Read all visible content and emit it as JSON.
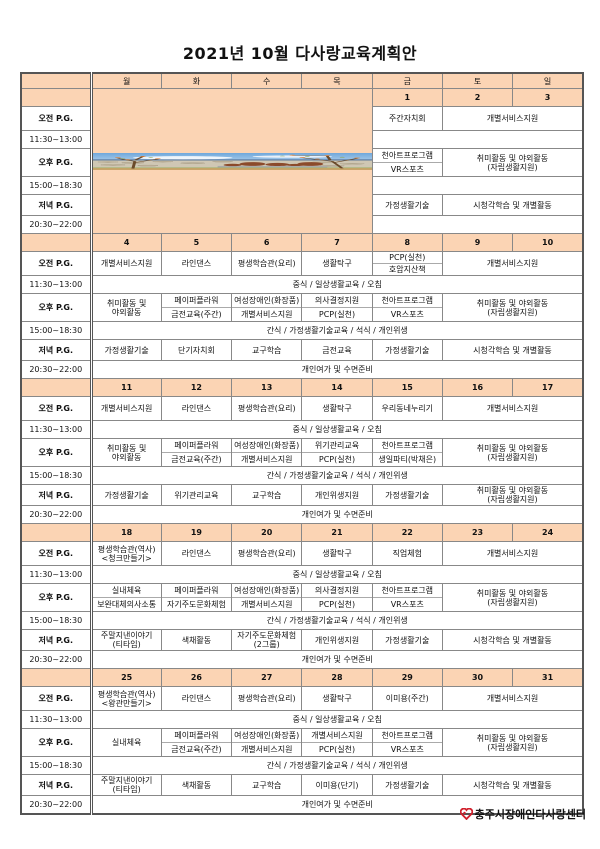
{
  "title": "2021년  10월  다사랑교육계획안",
  "weekdays": [
    "월",
    "화",
    "수",
    "목",
    "금",
    "토",
    "일"
  ],
  "row_labels": [
    "오전 P.G.",
    "11:30~13:00",
    "오후 P.G.",
    "15:00~18:30",
    "저녁 P.G.",
    "20:30~22:00"
  ],
  "colors": {
    "header_bg": "#fbd4b4",
    "border": "#555555",
    "logo": "#d01f2b"
  },
  "weeks": [
    {
      "dates": [
        "",
        "",
        "",
        "",
        "1",
        "2",
        "3"
      ],
      "image_cols": 4,
      "am": [
        {
          "t": [
            "주간자치회"
          ]
        },
        {
          "t": [
            "개별서비스지원"
          ],
          "span": 2
        }
      ],
      "meal1": "",
      "pm": [
        {
          "split": [
            "천아트프로그램",
            "VR스포츠"
          ]
        },
        {
          "t": [
            "취미활동 및 야외활동",
            "(자립생활지원)"
          ],
          "span": 2
        }
      ],
      "meal2": "",
      "eve": [
        {
          "t": [
            "가정생활기술"
          ]
        },
        {
          "t": [
            "시청각학습 및 개별활동"
          ],
          "span": 2
        }
      ],
      "meal3": ""
    },
    {
      "dates": [
        "4",
        "5",
        "6",
        "7",
        "8",
        "9",
        "10"
      ],
      "am": [
        {
          "t": [
            "개별서비스지원"
          ]
        },
        {
          "t": [
            "라인댄스"
          ]
        },
        {
          "t": [
            "평생학습관(요리)"
          ]
        },
        {
          "t": [
            "생활탁구"
          ]
        },
        {
          "split": [
            "PCP(실천)",
            "호암지산책"
          ]
        },
        {
          "t": [
            "개별서비스지원"
          ],
          "span": 2
        }
      ],
      "meal1": "중식  /  일상생활교육  /  오침",
      "pm": [
        {
          "t": [
            "취미활동 및",
            "야외활동"
          ]
        },
        {
          "split": [
            "페이퍼플라워",
            "금전교육(주간)"
          ]
        },
        {
          "split": [
            "여성장애인(화장품)",
            "개별서비스지원"
          ]
        },
        {
          "split": [
            "의사결정지원",
            "PCP(실천)"
          ]
        },
        {
          "split": [
            "천아트프로그램",
            "VR스포츠"
          ]
        },
        {
          "t": [
            "취미활동 및 야외활동",
            "(자립생활지원)"
          ],
          "span": 2
        }
      ],
      "meal2": "간식  /  가정생활기술교육  /  석식  /  개인위생",
      "eve": [
        {
          "t": [
            "가정생활기술"
          ]
        },
        {
          "t": [
            "단기자치회"
          ]
        },
        {
          "t": [
            "교구학습"
          ]
        },
        {
          "t": [
            "금전교육"
          ]
        },
        {
          "t": [
            "가정생활기술"
          ]
        },
        {
          "t": [
            "시청각학습 및 개별활동"
          ],
          "span": 2
        }
      ],
      "meal3": "개인여가 및 수면준비"
    },
    {
      "dates": [
        "11",
        "12",
        "13",
        "14",
        "15",
        "16",
        "17"
      ],
      "am": [
        {
          "t": [
            "개별서비스지원"
          ]
        },
        {
          "t": [
            "라인댄스"
          ]
        },
        {
          "t": [
            "평생학습관(요리)"
          ]
        },
        {
          "t": [
            "생활탁구"
          ]
        },
        {
          "t": [
            "우리동네누리기"
          ]
        },
        {
          "t": [
            "개별서비스지원"
          ],
          "span": 2
        }
      ],
      "meal1": "중식  /  일상생활교육  /  오침",
      "pm": [
        {
          "t": [
            "취미활동 및",
            "야외활동"
          ]
        },
        {
          "split": [
            "페이퍼플라워",
            "금전교육(주간)"
          ]
        },
        {
          "split": [
            "여성장애인(화장품)",
            "개별서비스지원"
          ]
        },
        {
          "split": [
            "위기관리교육",
            "PCP(실천)"
          ]
        },
        {
          "split": [
            "천아트프로그램",
            "생일파티(박채은)"
          ]
        },
        {
          "t": [
            "취미활동 및 야외활동",
            "(자립생활지원)"
          ],
          "span": 2
        }
      ],
      "meal2": "간식  /  가정생활기술교육  /  석식  /  개인위생",
      "eve": [
        {
          "t": [
            "가정생활기술"
          ]
        },
        {
          "t": [
            "위기관리교육"
          ]
        },
        {
          "t": [
            "교구학습"
          ]
        },
        {
          "t": [
            "개인위생지원"
          ]
        },
        {
          "t": [
            "가정생활기술"
          ]
        },
        {
          "t": [
            "취미활동 및 야외활동",
            "(자립생활지원)"
          ],
          "span": 2
        }
      ],
      "meal3": "개인여가 및 수면준비"
    },
    {
      "dates": [
        "18",
        "19",
        "20",
        "21",
        "22",
        "23",
        "24"
      ],
      "am": [
        {
          "t": [
            "평생학습관(역사)",
            "<청크만들기>"
          ]
        },
        {
          "t": [
            "라인댄스"
          ]
        },
        {
          "t": [
            "평생학습관(요리)"
          ]
        },
        {
          "t": [
            "생활탁구"
          ]
        },
        {
          "t": [
            "직업체험"
          ]
        },
        {
          "t": [
            "개별서비스지원"
          ],
          "span": 2
        }
      ],
      "meal1": "중식  /  일상생활교육  /  오침",
      "pm": [
        {
          "split": [
            "실내체육",
            "보완대체의사소통"
          ]
        },
        {
          "split": [
            "페이퍼플라워",
            "자기주도문화체험"
          ]
        },
        {
          "split": [
            "여성장애인(화장품)",
            "개별서비스지원"
          ]
        },
        {
          "split": [
            "의사결정지원",
            "PCP(실천)"
          ]
        },
        {
          "split": [
            "천아트프로그램",
            "VR스포츠"
          ]
        },
        {
          "t": [
            "취미활동 및 야외활동",
            "(자립생활지원)"
          ],
          "span": 2
        }
      ],
      "meal2": "간식  /  가정생활기술교육  /  석식  /  개인위생",
      "eve": [
        {
          "t": [
            "주말지낸이야기",
            "(티타임)"
          ]
        },
        {
          "t": [
            "색채활동"
          ]
        },
        {
          "t": [
            "자기주도문화체험",
            "(2그룹)"
          ]
        },
        {
          "t": [
            "개인위생지원"
          ]
        },
        {
          "t": [
            "가정생활기술"
          ]
        },
        {
          "t": [
            "시청각학습 및 개별활동"
          ],
          "span": 2
        }
      ],
      "meal3": "개인여가 및 수면준비"
    },
    {
      "dates": [
        "25",
        "26",
        "27",
        "28",
        "29",
        "30",
        "31"
      ],
      "am": [
        {
          "t": [
            "평생학습관(역사)",
            "<왕관만들기>"
          ]
        },
        {
          "t": [
            "라인댄스"
          ]
        },
        {
          "t": [
            "평생학습관(요리)"
          ]
        },
        {
          "t": [
            "생활탁구"
          ]
        },
        {
          "t": [
            "이미용(주간)"
          ]
        },
        {
          "t": [
            "개별서비스지원"
          ],
          "span": 2
        }
      ],
      "meal1": "중식  /  일상생활교육  /  오침",
      "pm": [
        {
          "t": [
            "실내체육"
          ]
        },
        {
          "split": [
            "페이퍼플라워",
            "금전교육(주간)"
          ]
        },
        {
          "split": [
            "여성장애인(화장품)",
            "개별서비스지원"
          ]
        },
        {
          "split": [
            "개별서비스지원",
            "PCP(실천)"
          ]
        },
        {
          "split": [
            "천아트프로그램",
            "VR스포츠"
          ]
        },
        {
          "t": [
            "취미활동 및 야외활동",
            "(자립생활지원)"
          ],
          "span": 2
        }
      ],
      "meal2": "간식  /  가정생활기술교육  /  석식  /  개인위생",
      "eve": [
        {
          "t": [
            "주말지낸이야기",
            "(티타임)"
          ]
        },
        {
          "t": [
            "색채활동"
          ]
        },
        {
          "t": [
            "교구학습"
          ]
        },
        {
          "t": [
            "이미용(단기)"
          ]
        },
        {
          "t": [
            "가정생활기술"
          ]
        },
        {
          "t": [
            "시청각학습 및 개별활동"
          ],
          "span": 2
        }
      ],
      "meal3": "개인여가 및 수면준비"
    }
  ],
  "footer": {
    "org_name": "충주시장애인다사랑센터",
    "logo_icon": "heart-logo-icon"
  }
}
